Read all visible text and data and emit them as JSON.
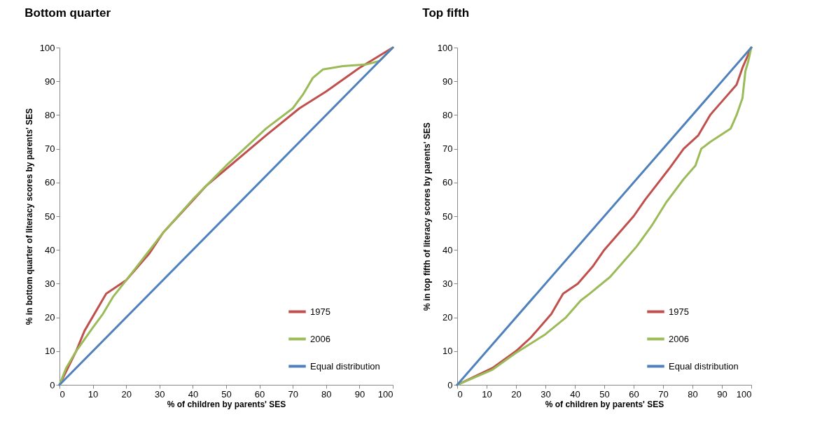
{
  "chart_data": [
    {
      "type": "line",
      "title": "Bottom quarter",
      "xlabel": "%  of children by parents' SES",
      "ylabel": "% in bottom quarter of literacy scores by parents' SES",
      "xlim": [
        0,
        100
      ],
      "ylim": [
        0,
        100
      ],
      "xticks": [
        0,
        10,
        20,
        30,
        40,
        50,
        60,
        70,
        80,
        90,
        100
      ],
      "yticks": [
        0,
        10,
        20,
        30,
        40,
        50,
        60,
        70,
        80,
        90,
        100
      ],
      "legend": "bottom right",
      "series": [
        {
          "name": "1975",
          "color": "#c0504d",
          "x": [
            0,
            5,
            7.5,
            14,
            20,
            27,
            31,
            44,
            50,
            62,
            72,
            80,
            90,
            100
          ],
          "values": [
            0,
            10,
            16,
            27,
            31,
            39,
            45,
            59,
            64,
            74,
            82,
            87,
            94,
            100
          ]
        },
        {
          "name": "2006",
          "color": "#9bbb59",
          "x": [
            0,
            2,
            5,
            10,
            13,
            16,
            20,
            31,
            40,
            50,
            62,
            70,
            73,
            76,
            79,
            85,
            92,
            96,
            100
          ],
          "values": [
            0,
            5,
            10,
            17,
            21,
            26,
            31,
            45,
            55,
            65,
            76,
            82,
            86,
            91,
            93.5,
            94.5,
            95,
            96,
            100
          ]
        },
        {
          "name": "Equal distribution",
          "color": "#4f81bd",
          "x": [
            0,
            100
          ],
          "values": [
            0,
            100
          ]
        }
      ]
    },
    {
      "type": "line",
      "title": "Top fifth",
      "xlabel": "%  of children by parents' SES",
      "ylabel": "% in top fifth of literacy scores by parents' SES",
      "xlim": [
        0,
        100
      ],
      "ylim": [
        0,
        100
      ],
      "xticks": [
        0,
        10,
        20,
        30,
        40,
        50,
        60,
        70,
        80,
        90,
        100
      ],
      "yticks": [
        0,
        10,
        20,
        30,
        40,
        50,
        60,
        70,
        80,
        90,
        100
      ],
      "legend": "bottom right",
      "series": [
        {
          "name": "1975",
          "color": "#c0504d",
          "x": [
            0,
            12,
            20,
            25,
            32,
            36,
            41,
            46,
            50,
            60,
            64,
            72,
            77,
            82,
            86,
            90,
            95,
            97,
            100
          ],
          "values": [
            0,
            5,
            10,
            14,
            21,
            27,
            30,
            35,
            40,
            50,
            55,
            64,
            70,
            74,
            80,
            84,
            89,
            94,
            100
          ]
        },
        {
          "name": "2006",
          "color": "#9bbb59",
          "x": [
            0,
            12,
            20,
            30,
            37,
            42,
            45,
            52,
            57,
            61,
            66,
            71,
            77,
            81,
            83,
            86,
            93,
            95,
            97,
            98,
            99,
            100
          ],
          "values": [
            0,
            4.5,
            9.5,
            15,
            20,
            25,
            27,
            32,
            37,
            41,
            47,
            54,
            61,
            65,
            70,
            72,
            76,
            80,
            85,
            93,
            96,
            100
          ]
        },
        {
          "name": "Equal distribution",
          "color": "#4f81bd",
          "x": [
            0,
            100
          ],
          "values": [
            0,
            100
          ]
        }
      ]
    }
  ]
}
